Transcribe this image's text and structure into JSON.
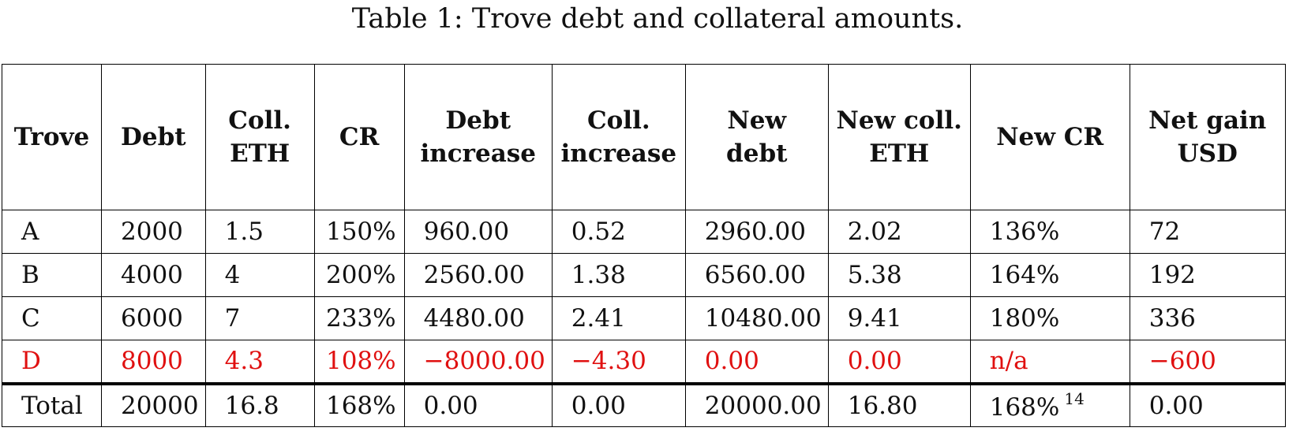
{
  "caption": "Table 1: Trove debt and collateral amounts.",
  "table": {
    "headers": [
      [
        "Trove"
      ],
      [
        "Debt"
      ],
      [
        "Coll.",
        "ETH"
      ],
      [
        "CR"
      ],
      [
        "Debt",
        "increase"
      ],
      [
        "Coll.",
        "increase"
      ],
      [
        "New",
        "debt"
      ],
      [
        "New coll.",
        "ETH"
      ],
      [
        "New CR"
      ],
      [
        "Net gain",
        "USD"
      ]
    ],
    "rows": [
      [
        "A",
        "2000",
        "1.5",
        "150%",
        "960.00",
        "0.52",
        "2960.00",
        "2.02",
        "136%",
        "72"
      ],
      [
        "B",
        "4000",
        "4",
        "200%",
        "2560.00",
        "1.38",
        "6560.00",
        "5.38",
        "164%",
        "192"
      ],
      [
        "C",
        "6000",
        "7",
        "233%",
        "4480.00",
        "2.41",
        "10480.00",
        "9.41",
        "180%",
        "336"
      ],
      [
        "D",
        "8000",
        "4.3",
        "108%",
        "−8000.00",
        "−4.30",
        "0.00",
        "0.00",
        "n/a",
        "−600"
      ]
    ],
    "total": [
      "Total",
      "20000",
      "16.8",
      "168%",
      "0.00",
      "0.00",
      "20000.00",
      "16.80",
      "168%",
      "0.00"
    ],
    "total_footnote": "14",
    "highlight_row_color": "#e01010"
  }
}
